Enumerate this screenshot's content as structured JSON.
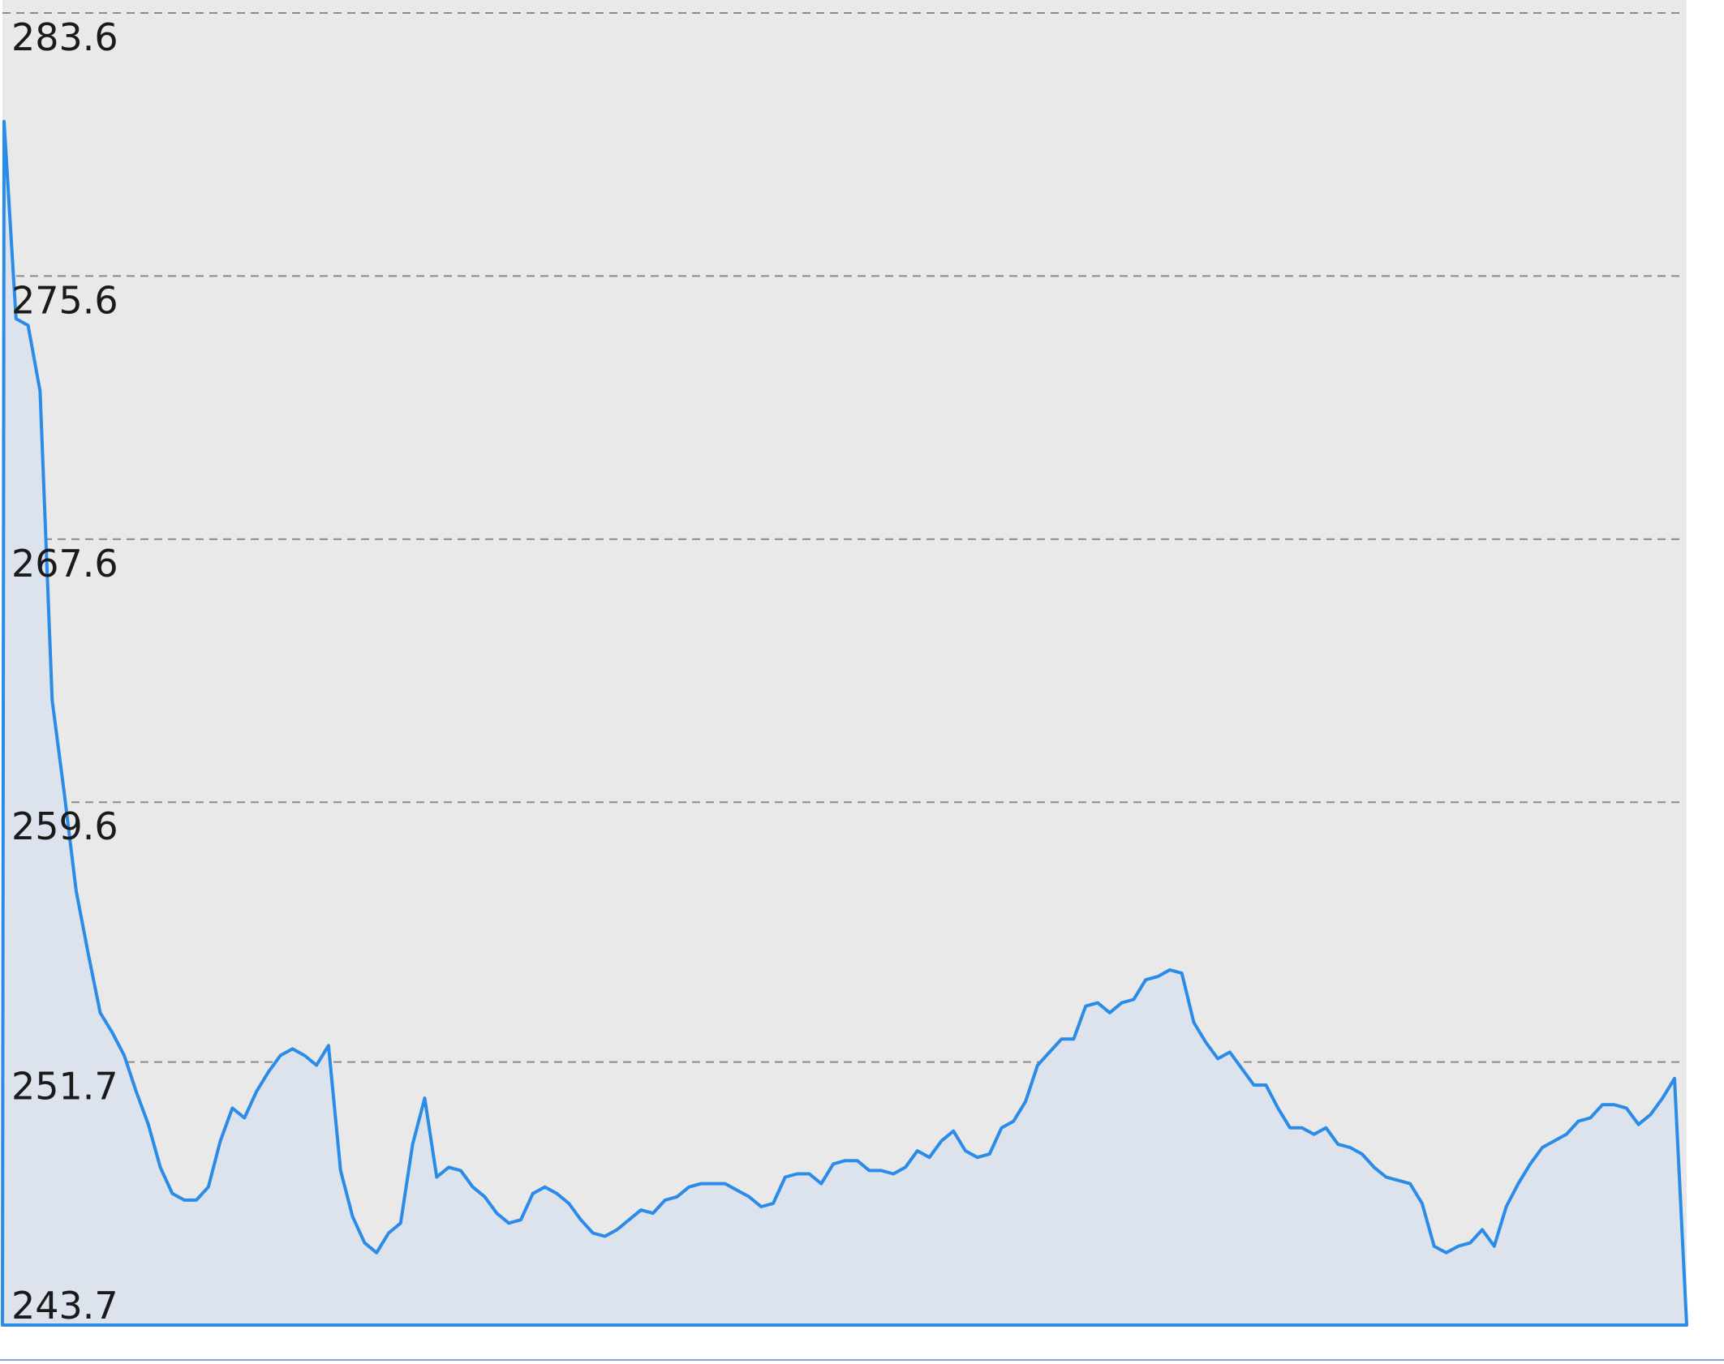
{
  "colors": {
    "plot_background": "#e9e9e9",
    "page_background": "#ffffff",
    "series_line": "#2b8be8",
    "series_fill": "#dce3ec",
    "grid_line": "#8c8c8c"
  },
  "chart_data": {
    "type": "area",
    "title": "",
    "xlabel": "",
    "ylabel": "",
    "grid": true,
    "legend": "none",
    "ylim": [
      243.7,
      283.6
    ],
    "yticks": [
      "283.6",
      "275.6",
      "267.6",
      "259.6",
      "251.7",
      "243.7"
    ],
    "ytick_values": [
      283.6,
      275.6,
      267.6,
      259.6,
      251.7,
      243.7
    ],
    "series": [
      {
        "values": [
          280.3,
          274.3,
          274.1,
          272.1,
          262.7,
          259.9,
          256.9,
          255.0,
          253.2,
          252.6,
          251.9,
          250.8,
          249.8,
          248.5,
          247.7,
          247.5,
          247.5,
          247.9,
          249.3,
          250.3,
          250.0,
          250.8,
          251.4,
          251.9,
          252.1,
          251.9,
          251.6,
          252.2,
          248.4,
          247.0,
          246.2,
          245.9,
          246.5,
          246.8,
          249.2,
          250.6,
          248.2,
          248.5,
          248.4,
          247.9,
          247.6,
          247.1,
          246.8,
          246.9,
          247.7,
          247.9,
          247.7,
          247.4,
          246.9,
          246.5,
          246.4,
          246.6,
          246.9,
          247.2,
          247.1,
          247.5,
          247.6,
          247.9,
          248.0,
          248.0,
          248.0,
          247.8,
          247.6,
          247.3,
          247.4,
          248.2,
          248.3,
          248.3,
          248.0,
          248.6,
          248.7,
          248.7,
          248.4,
          248.4,
          248.3,
          248.5,
          249.0,
          248.8,
          249.3,
          249.6,
          249.0,
          248.8,
          248.9,
          249.7,
          249.9,
          250.5,
          251.6,
          252.0,
          252.4,
          252.4,
          253.4,
          253.5,
          253.2,
          253.5,
          253.6,
          254.2,
          254.3,
          254.5,
          254.4,
          252.9,
          252.3,
          251.8,
          252.0,
          251.5,
          251.0,
          251.0,
          250.3,
          249.7,
          249.7,
          249.5,
          249.7,
          249.2,
          249.1,
          248.9,
          248.5,
          248.2,
          248.1,
          248.0,
          247.4,
          246.1,
          245.9,
          246.1,
          246.2,
          246.6,
          246.1,
          247.3,
          248.0,
          248.6,
          249.1,
          249.3,
          249.5,
          249.9,
          250.0,
          250.4,
          250.4,
          250.3,
          249.8,
          250.1,
          250.6,
          251.2
        ]
      }
    ]
  }
}
